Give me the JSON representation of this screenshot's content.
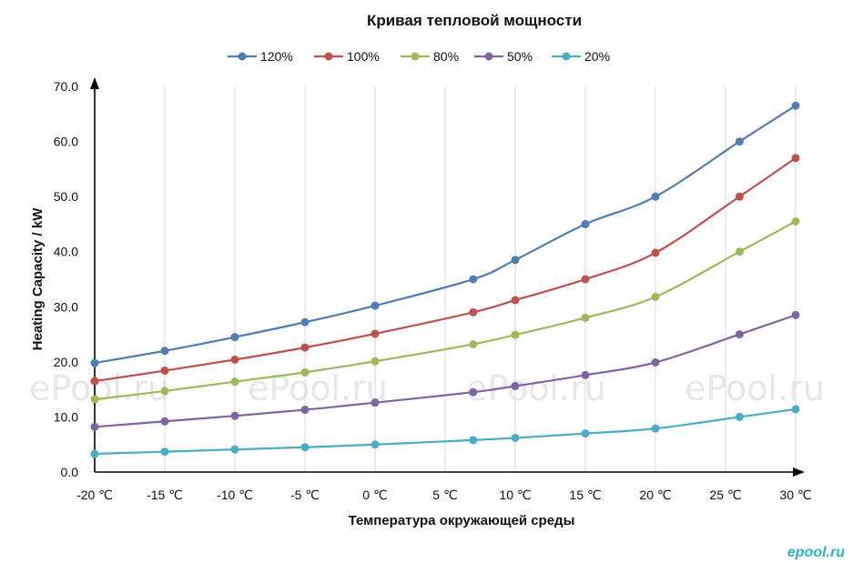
{
  "chart_data": {
    "type": "line",
    "title": "Кривая тепловой мощности",
    "xlabel": "Температура окружающей среды",
    "ylabel": "Heating Capacity / kW",
    "x_ticks": [
      "-20 ℃",
      "-15 ℃",
      "-10 ℃",
      "-5 ℃",
      "0 ℃",
      "5 ℃",
      "10 ℃",
      "15 ℃",
      "20 ℃",
      "25 ℃",
      "30 ℃"
    ],
    "y_ticks": [
      "0.0",
      "10.0",
      "20.0",
      "30.0",
      "40.0",
      "50.0",
      "60.0",
      "70.0"
    ],
    "xlim": [
      -20,
      30
    ],
    "ylim": [
      0,
      70
    ],
    "grid": "vertical",
    "legend_position": "top",
    "series": [
      {
        "name": "120%",
        "color": "#4f7eb6",
        "points": [
          [
            -20,
            19.8
          ],
          [
            -15,
            22
          ],
          [
            -10,
            24.5
          ],
          [
            -5,
            27.2
          ],
          [
            0,
            30.2
          ],
          [
            7,
            35
          ],
          [
            10,
            38.5
          ],
          [
            15,
            45
          ],
          [
            20,
            50
          ],
          [
            26,
            60
          ],
          [
            30,
            66.5
          ]
        ]
      },
      {
        "name": "100%",
        "color": "#c0504d",
        "points": [
          [
            -20,
            16.5
          ],
          [
            -15,
            18.4
          ],
          [
            -10,
            20.4
          ],
          [
            -5,
            22.6
          ],
          [
            0,
            25.1
          ],
          [
            7,
            29
          ],
          [
            10,
            31.2
          ],
          [
            15,
            35
          ],
          [
            20,
            39.8
          ],
          [
            26,
            50
          ],
          [
            30,
            57
          ]
        ]
      },
      {
        "name": "80%",
        "color": "#9bbb59",
        "points": [
          [
            -20,
            13.2
          ],
          [
            -15,
            14.7
          ],
          [
            -10,
            16.4
          ],
          [
            -5,
            18.1
          ],
          [
            0,
            20.1
          ],
          [
            7,
            23.2
          ],
          [
            10,
            24.9
          ],
          [
            15,
            28
          ],
          [
            20,
            31.8
          ],
          [
            26,
            40
          ],
          [
            30,
            45.5
          ]
        ]
      },
      {
        "name": "50%",
        "color": "#8064a2",
        "points": [
          [
            -20,
            8.2
          ],
          [
            -15,
            9.2
          ],
          [
            -10,
            10.2
          ],
          [
            -5,
            11.3
          ],
          [
            0,
            12.6
          ],
          [
            7,
            14.5
          ],
          [
            10,
            15.6
          ],
          [
            15,
            17.6
          ],
          [
            20,
            19.9
          ],
          [
            26,
            25
          ],
          [
            30,
            28.5
          ]
        ]
      },
      {
        "name": "20%",
        "color": "#4bacc6",
        "points": [
          [
            -20,
            3.3
          ],
          [
            -15,
            3.7
          ],
          [
            -10,
            4.1
          ],
          [
            -5,
            4.5
          ],
          [
            0,
            5
          ],
          [
            7,
            5.8
          ],
          [
            10,
            6.2
          ],
          [
            15,
            7
          ],
          [
            20,
            7.9
          ],
          [
            26,
            10
          ],
          [
            30,
            11.4
          ]
        ]
      }
    ]
  },
  "watermarks": [
    "ePool.ru",
    "ePool.ru",
    "ePool.ru",
    "ePool.ru"
  ],
  "brand_logo": "epool.ru"
}
